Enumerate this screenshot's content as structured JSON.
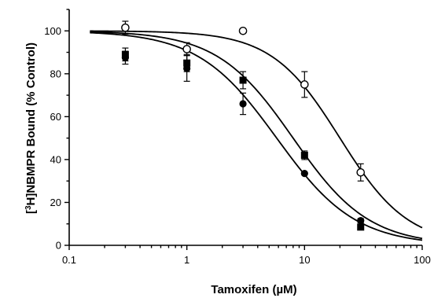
{
  "chart_data": {
    "type": "scatter",
    "xlabel": "Tamoxifen (µM)",
    "ylabel_main": "NBMPR Bound (% Control)",
    "ylabel_prefix_bracket_open": "[",
    "ylabel_superscript": "3",
    "ylabel_isotope": "H]",
    "x_scale": "log",
    "xlim": [
      0.1,
      100
    ],
    "ylim": [
      0,
      110
    ],
    "x_ticks": [
      0.1,
      1,
      10,
      100
    ],
    "x_tick_labels": [
      "0.1",
      "1",
      "10",
      "100"
    ],
    "y_ticks": [
      0,
      20,
      40,
      60,
      80,
      100
    ],
    "y_tick_labels": [
      "0",
      "20",
      "40",
      "60",
      "80",
      "100"
    ],
    "grid": false,
    "series": [
      {
        "marker": "open-circle",
        "points": [
          {
            "x": 0.3,
            "y": 101.5,
            "err": 3
          },
          {
            "x": 1,
            "y": 91.5,
            "err": 3
          },
          {
            "x": 3,
            "y": 100,
            "err": 0
          },
          {
            "x": 10,
            "y": 75,
            "err": 6
          },
          {
            "x": 30,
            "y": 34,
            "err": 4
          }
        ],
        "fit": {
          "top": 100,
          "ic50": 20,
          "hill": 1.5
        }
      },
      {
        "marker": "filled-square",
        "points": [
          {
            "x": 0.3,
            "y": 89,
            "err": 3
          },
          {
            "x": 1,
            "y": 85,
            "err": 4
          },
          {
            "x": 3,
            "y": 77,
            "err": 4
          },
          {
            "x": 10,
            "y": 42,
            "err": 2
          },
          {
            "x": 30,
            "y": 8.5,
            "err": 1
          }
        ],
        "fit": {
          "top": 100,
          "ic50": 8,
          "hill": 1.35
        }
      },
      {
        "marker": "filled-circle",
        "points": [
          {
            "x": 0.3,
            "y": 87.5,
            "err": 3
          },
          {
            "x": 1,
            "y": 82.5,
            "err": 6
          },
          {
            "x": 3,
            "y": 66,
            "err": 5
          },
          {
            "x": 10,
            "y": 33.5,
            "err": 0
          },
          {
            "x": 30,
            "y": 11.5,
            "err": 1
          }
        ],
        "fit": {
          "top": 100,
          "ic50": 5.8,
          "hill": 1.3
        }
      }
    ]
  }
}
